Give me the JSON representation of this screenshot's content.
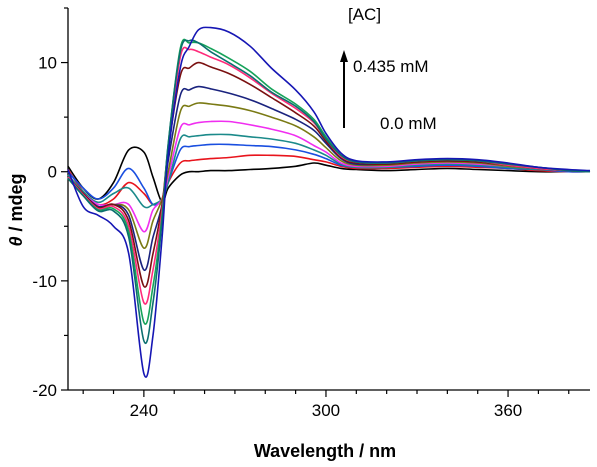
{
  "chart_data": {
    "type": "line",
    "xlabel": "Wavelength / nm",
    "ylabel_symbol": "θ",
    "ylabel_rest": " / mdeg",
    "xlim": [
      215,
      387
    ],
    "ylim": [
      -20,
      15
    ],
    "grid": false,
    "x_ticks": [
      240,
      300,
      360
    ],
    "y_ticks": [
      -20,
      -10,
      0,
      10
    ],
    "annotations": {
      "bracket_label": "[AC]",
      "high_label": "0.435 mM",
      "low_label": "0.0 mM"
    },
    "x": [
      215,
      220,
      225,
      230,
      235,
      240,
      243,
      246,
      248,
      252,
      255,
      258,
      262,
      268,
      275,
      282,
      290,
      296,
      300,
      305,
      310,
      320,
      330,
      340,
      350,
      360,
      370,
      380,
      387
    ],
    "series": [
      {
        "color": "#000000",
        "values": [
          0.5,
          -1.5,
          -2.5,
          -1.0,
          2.0,
          1.8,
          -0.5,
          -2.8,
          -1.5,
          -0.3,
          0.0,
          0.0,
          0.1,
          0.1,
          0.2,
          0.3,
          0.5,
          0.8,
          0.6,
          0.3,
          0.2,
          0.1,
          0.2,
          0.3,
          0.2,
          0.1,
          0.0,
          0.0,
          0.0
        ]
      },
      {
        "color": "#e8141c",
        "values": [
          0.2,
          -1.8,
          -3.0,
          -2.5,
          -1.0,
          -2.0,
          -3.0,
          -2.5,
          -1.0,
          0.8,
          1.0,
          1.1,
          1.2,
          1.3,
          1.5,
          1.5,
          1.4,
          1.1,
          0.9,
          0.5,
          0.3,
          0.3,
          0.4,
          0.5,
          0.4,
          0.3,
          0.1,
          0.0,
          0.0
        ]
      },
      {
        "color": "#1a4fe0",
        "values": [
          0.0,
          -1.5,
          -2.5,
          -1.5,
          0.3,
          -1.5,
          -3.0,
          -2.5,
          -1.0,
          2.0,
          2.3,
          2.4,
          2.5,
          2.5,
          2.4,
          2.3,
          2.0,
          1.6,
          1.2,
          0.6,
          0.4,
          0.4,
          0.5,
          0.6,
          0.5,
          0.3,
          0.2,
          0.0,
          0.0
        ]
      },
      {
        "color": "#1b8a8a",
        "values": [
          -0.3,
          -1.8,
          -2.8,
          -2.0,
          -1.5,
          -3.2,
          -3.0,
          -2.5,
          -1.0,
          3.0,
          3.2,
          3.3,
          3.4,
          3.4,
          3.2,
          3.0,
          2.6,
          2.0,
          1.5,
          0.7,
          0.4,
          0.4,
          0.6,
          0.7,
          0.6,
          0.4,
          0.2,
          0.1,
          0.0
        ]
      },
      {
        "color": "#f02ef0",
        "values": [
          -0.5,
          -2.0,
          -3.0,
          -3.0,
          -3.0,
          -5.5,
          -3.5,
          -2.5,
          -0.5,
          4.0,
          4.3,
          4.5,
          4.6,
          4.6,
          4.3,
          3.9,
          3.3,
          2.4,
          1.8,
          0.8,
          0.5,
          0.5,
          0.7,
          0.8,
          0.7,
          0.5,
          0.3,
          0.1,
          0.0
        ]
      },
      {
        "color": "#7a7a14",
        "values": [
          -0.5,
          -2.0,
          -3.2,
          -3.0,
          -3.5,
          -7.0,
          -4.5,
          -2.5,
          0.0,
          5.5,
          6.0,
          6.3,
          6.2,
          6.0,
          5.6,
          5.0,
          4.2,
          3.2,
          2.2,
          1.0,
          0.6,
          0.6,
          0.8,
          0.9,
          0.8,
          0.5,
          0.3,
          0.1,
          0.0
        ]
      },
      {
        "color": "#1a237e",
        "values": [
          -0.5,
          -2.0,
          -3.2,
          -3.0,
          -4.0,
          -9.0,
          -6.0,
          -3.0,
          1.0,
          7.0,
          7.5,
          7.8,
          7.6,
          7.2,
          6.6,
          5.8,
          4.8,
          3.8,
          2.6,
          1.2,
          0.7,
          0.7,
          0.9,
          1.0,
          0.9,
          0.6,
          0.3,
          0.1,
          0.0
        ]
      },
      {
        "color": "#7a1010",
        "values": [
          -0.5,
          -2.0,
          -3.3,
          -3.0,
          -4.5,
          -10.5,
          -7.5,
          -3.0,
          2.0,
          8.8,
          9.5,
          10.0,
          9.6,
          9.0,
          8.0,
          6.8,
          5.4,
          4.2,
          2.8,
          1.3,
          0.8,
          0.7,
          0.9,
          1.0,
          0.9,
          0.6,
          0.3,
          0.1,
          0.0
        ]
      },
      {
        "color": "#ff2a7a",
        "values": [
          -0.5,
          -2.1,
          -3.4,
          -3.2,
          -5.0,
          -12.0,
          -9.0,
          -3.5,
          2.0,
          10.5,
          11.2,
          11.0,
          10.5,
          9.8,
          8.6,
          7.2,
          5.8,
          4.5,
          3.0,
          1.4,
          0.9,
          0.8,
          1.0,
          1.1,
          1.0,
          0.6,
          0.3,
          0.1,
          0.0
        ]
      },
      {
        "color": "#16a35a",
        "values": [
          -0.6,
          -2.2,
          -3.5,
          -3.4,
          -5.5,
          -13.8,
          -10.5,
          -4.0,
          2.5,
          11.3,
          11.8,
          11.8,
          11.3,
          10.4,
          9.2,
          7.6,
          6.2,
          4.8,
          3.2,
          1.5,
          0.9,
          0.8,
          1.0,
          1.1,
          1.0,
          0.7,
          0.4,
          0.1,
          0.0
        ]
      },
      {
        "color": "#0b6f6f",
        "values": [
          -0.6,
          -2.2,
          -3.6,
          -3.6,
          -6.0,
          -15.5,
          -12.0,
          -4.5,
          2.5,
          11.0,
          12.0,
          11.8,
          11.0,
          10.0,
          8.8,
          7.3,
          6.0,
          4.6,
          3.0,
          1.5,
          0.9,
          0.8,
          1.0,
          1.1,
          1.0,
          0.7,
          0.4,
          0.1,
          0.0
        ]
      },
      {
        "color": "#1616b4",
        "values": [
          0.2,
          -3.2,
          -4.0,
          -5.0,
          -7.5,
          -18.5,
          -15.0,
          -6.0,
          1.5,
          9.5,
          11.5,
          13.0,
          13.2,
          12.8,
          11.5,
          9.5,
          7.5,
          5.5,
          3.5,
          1.7,
          1.0,
          0.9,
          1.1,
          1.2,
          1.1,
          0.8,
          0.4,
          0.2,
          0.1
        ]
      }
    ]
  }
}
